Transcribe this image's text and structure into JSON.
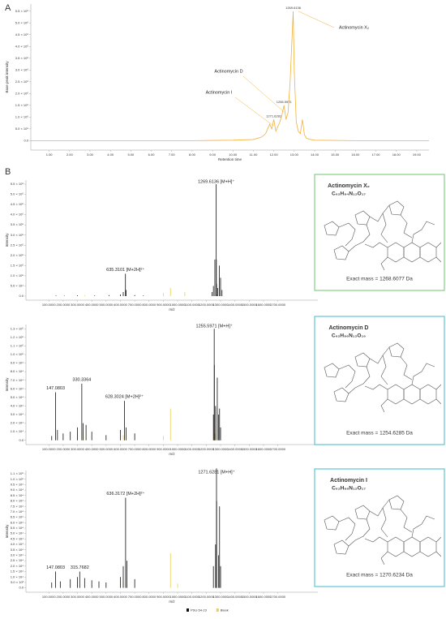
{
  "panel_labels": [
    "A",
    "B"
  ],
  "chart_data": [
    {
      "type": "line",
      "x_label": "Retention time",
      "y_label": "Base peak intensity",
      "series": [
        {
          "color": "#f2b13c",
          "x": [
            0.1,
            2,
            4,
            6,
            8,
            10,
            11,
            11.4,
            11.6,
            11.8,
            11.9,
            12.0,
            12.1,
            12.2,
            12.3,
            12.4,
            12.5,
            12.6,
            12.7,
            12.8,
            12.9,
            12.95,
            13.0,
            13.1,
            13.2,
            13.3,
            13.4,
            13.5,
            13.6,
            13.8,
            14,
            16,
            19.6
          ],
          "values": [
            0,
            0,
            0,
            0,
            0,
            20000,
            50000,
            150000,
            300000,
            700000,
            500000,
            900000,
            400000,
            600000,
            800000,
            1100000,
            1500000,
            900000,
            1200000,
            2500000,
            4500000,
            5500000,
            3000000,
            800000,
            400000,
            300000,
            900000,
            250000,
            100000,
            50000,
            20000,
            0,
            0
          ]
        }
      ],
      "annotations": [
        {
          "text": "1269.6136",
          "callout": "Actinomycin X₂",
          "x": 12.95,
          "y": 5500000
        },
        {
          "text": "1255.5971",
          "callout": "Actinomycin D",
          "x": 12.5,
          "y": 1500000
        },
        {
          "text": "1271.6281",
          "callout": "Actinomycin I",
          "x": 12.0,
          "y": 900000
        }
      ],
      "xlim": [
        0.1,
        19.6
      ],
      "ylim": [
        -400000,
        5800000
      ],
      "xticks": [
        {
          "value": 1,
          "label": "1.00"
        },
        {
          "value": 2,
          "label": "2.00"
        },
        {
          "value": 3,
          "label": "3.00"
        },
        {
          "value": 4,
          "label": "4.00"
        },
        {
          "value": 5,
          "label": "5.00"
        },
        {
          "value": 6,
          "label": "6.00"
        },
        {
          "value": 7,
          "label": "7.00"
        },
        {
          "value": 8,
          "label": "8.00"
        },
        {
          "value": 9,
          "label": "9.00"
        },
        {
          "value": 10,
          "label": "10.00"
        },
        {
          "value": 11,
          "label": "11.00"
        },
        {
          "value": 12,
          "label": "12.00"
        },
        {
          "value": 13,
          "label": "13.00"
        },
        {
          "value": 14,
          "label": "14.00"
        },
        {
          "value": 15,
          "label": "15.00"
        },
        {
          "value": 16,
          "label": "16.00"
        },
        {
          "value": 17,
          "label": "17.00"
        },
        {
          "value": 18,
          "label": "18.00"
        },
        {
          "value": 19,
          "label": "19.00"
        }
      ],
      "yticks": [
        {
          "value": 0,
          "label": "0.0"
        },
        {
          "value": 500000,
          "label": "5.0 × 10⁵"
        },
        {
          "value": 1000000,
          "label": "1.0 × 10⁶"
        },
        {
          "value": 1500000,
          "label": "1.5 × 10⁶"
        },
        {
          "value": 2000000,
          "label": "2.0 × 10⁶"
        },
        {
          "value": 2500000,
          "label": "2.5 × 10⁶"
        },
        {
          "value": 3000000,
          "label": "3.0 × 10⁶"
        },
        {
          "value": 3500000,
          "label": "3.5 × 10⁶"
        },
        {
          "value": 4000000,
          "label": "4.0 × 10⁶"
        },
        {
          "value": 4500000,
          "label": "4.5 × 10⁶"
        },
        {
          "value": 5000000,
          "label": "5.0 × 10⁶"
        },
        {
          "value": 5500000,
          "label": "5.5 × 10⁶"
        }
      ]
    },
    {
      "type": "stem",
      "x_label": "m/z",
      "y_label": "Intensity",
      "series": [
        {
          "color": "#111111",
          "x": [
            150,
            210,
            300,
            420,
            520,
            600,
            620,
            635.3101,
            640,
            700,
            760,
            1240,
            1250,
            1260,
            1269.6136,
            1270.6,
            1272,
            1280,
            1291,
            1300,
            1310
          ],
          "values": [
            3000,
            2000,
            4000,
            3000,
            5000,
            8000,
            20000,
            110000,
            30000,
            5000,
            3000,
            20000,
            50000,
            180000,
            550000,
            180000,
            60000,
            40000,
            150000,
            90000,
            30000
          ]
        },
        {
          "color": "#e8d24a",
          "x": [
            350,
            620,
            900,
            950,
            1050,
            1275
          ],
          "values": [
            5000,
            8000,
            15000,
            40000,
            20000,
            10000
          ]
        }
      ],
      "annotations": [
        {
          "text": "1269.6136 [M+H]⁺",
          "x": 1269.6136
        },
        {
          "text": "635.3101 [M+2H]²⁺",
          "x": 635.3101
        }
      ],
      "structure": {
        "name": "Actinomycin X₂",
        "formula": "C₆₂H₈₄N₁₂O₁₇",
        "exact_mass_text": "Exact mass = 1268.6077 Da",
        "border_color": "#86cf86"
      },
      "xlim": [
        -60,
        1980
      ],
      "ylim": [
        -20000,
        570000
      ],
      "xticks": [
        {
          "value": 100,
          "label": "100.0000"
        },
        {
          "value": 200,
          "label": "200.0000"
        },
        {
          "value": 300,
          "label": "300.0000"
        },
        {
          "value": 400,
          "label": "400.0000"
        },
        {
          "value": 500,
          "label": "500.0000"
        },
        {
          "value": 600,
          "label": "600.0000"
        },
        {
          "value": 700,
          "label": "700.0000"
        },
        {
          "value": 800,
          "label": "800.0000"
        },
        {
          "value": 900,
          "label": "900.0000"
        },
        {
          "value": 1000,
          "label": "1000.0000"
        },
        {
          "value": 1100,
          "label": "1100.0000"
        },
        {
          "value": 1200,
          "label": "1200.0000"
        },
        {
          "value": 1300,
          "label": "1300.0000"
        },
        {
          "value": 1400,
          "label": "1400.0000"
        },
        {
          "value": 1500,
          "label": "1500.0000"
        },
        {
          "value": 1600,
          "label": "1600.0000"
        },
        {
          "value": 1700,
          "label": "1700.0000"
        }
      ],
      "yticks": [
        {
          "value": 0,
          "label": "0.0"
        },
        {
          "value": 50000,
          "label": "5.0 × 10⁴"
        },
        {
          "value": 100000,
          "label": "1.0 × 10⁵"
        },
        {
          "value": 150000,
          "label": "1.5 × 10⁵"
        },
        {
          "value": 200000,
          "label": "2.0 × 10⁵"
        },
        {
          "value": 250000,
          "label": "2.5 × 10⁵"
        },
        {
          "value": 300000,
          "label": "3.0 × 10⁵"
        },
        {
          "value": 350000,
          "label": "3.5 × 10⁵"
        },
        {
          "value": 400000,
          "label": "4.0 × 10⁵"
        },
        {
          "value": 450000,
          "label": "4.5 × 10⁵"
        },
        {
          "value": 500000,
          "label": "5.0 × 10⁵"
        },
        {
          "value": 550000,
          "label": "5.5 × 10⁵"
        }
      ]
    },
    {
      "type": "stem",
      "x_label": "m/z",
      "y_label": "Intensity",
      "series": [
        {
          "color": "#111111",
          "x": [
            120,
            147.0803,
            160,
            200,
            250,
            300,
            330.3364,
            340,
            360,
            400,
            500,
            600,
            628.3024,
            640,
            700,
            1250,
            1255.5971,
            1256.6,
            1265,
            1277,
            1285,
            1293,
            1300
          ],
          "values": [
            5000,
            56000,
            12000,
            8000,
            10000,
            15000,
            66000,
            20000,
            18000,
            10000,
            6000,
            12000,
            46000,
            15000,
            8000,
            30000,
            130000,
            88000,
            40000,
            73000,
            30000,
            37000,
            15000
          ]
        },
        {
          "color": "#e8d24a",
          "x": [
            300,
            340,
            620,
            900,
            950,
            1260
          ],
          "values": [
            8000,
            10000,
            6000,
            5000,
            37000,
            8000
          ]
        }
      ],
      "annotations": [
        {
          "text": "1255.5971 [M+H]⁺",
          "x": 1255.5971
        },
        {
          "text": "147.0803",
          "x": 147.0803
        },
        {
          "text": "330.3364",
          "x": 330.3364
        },
        {
          "text": "628.3024 [M+2H]²⁺",
          "x": 628.3024
        }
      ],
      "structure": {
        "name": "Actinomycin D",
        "formula": "C₆₂H₈₆N₁₂O₁₆",
        "exact_mass_text": "Exact mass = 1254.6285 Da",
        "border_color": "#5fc6d6"
      },
      "xlim": [
        -60,
        1980
      ],
      "ylim": [
        -5000,
        135000
      ],
      "xticks": [
        {
          "value": 100,
          "label": "100.0000"
        },
        {
          "value": 200,
          "label": "200.0000"
        },
        {
          "value": 300,
          "label": "300.0000"
        },
        {
          "value": 400,
          "label": "400.0000"
        },
        {
          "value": 500,
          "label": "500.0000"
        },
        {
          "value": 600,
          "label": "600.0000"
        },
        {
          "value": 700,
          "label": "700.0000"
        },
        {
          "value": 800,
          "label": "800.0000"
        },
        {
          "value": 900,
          "label": "900.0000"
        },
        {
          "value": 1000,
          "label": "1000.0000"
        },
        {
          "value": 1100,
          "label": "1100.0000"
        },
        {
          "value": 1200,
          "label": "1200.0000"
        },
        {
          "value": 1300,
          "label": "1300.0000"
        },
        {
          "value": 1400,
          "label": "1400.0000"
        },
        {
          "value": 1500,
          "label": "1500.0000"
        },
        {
          "value": 1600,
          "label": "1600.0000"
        },
        {
          "value": 1700,
          "label": "1700.0000"
        }
      ],
      "yticks": [
        {
          "value": 0,
          "label": "0.0"
        },
        {
          "value": 10000,
          "label": "1.0 × 10⁴"
        },
        {
          "value": 20000,
          "label": "2.0 × 10⁴"
        },
        {
          "value": 30000,
          "label": "3.0 × 10⁴"
        },
        {
          "value": 40000,
          "label": "4.0 × 10⁴"
        },
        {
          "value": 50000,
          "label": "5.0 × 10⁴"
        },
        {
          "value": 60000,
          "label": "6.0 × 10⁴"
        },
        {
          "value": 70000,
          "label": "7.0 × 10⁴"
        },
        {
          "value": 80000,
          "label": "8.0 × 10⁴"
        },
        {
          "value": 90000,
          "label": "9.0 × 10⁴"
        },
        {
          "value": 100000,
          "label": "1.0 × 10⁵"
        },
        {
          "value": 110000,
          "label": "1.1 × 10⁵"
        },
        {
          "value": 120000,
          "label": "1.2 × 10⁵"
        },
        {
          "value": 130000,
          "label": "1.3 × 10⁵"
        }
      ]
    },
    {
      "type": "stem",
      "x_label": "m/z",
      "y_label": "Intensity",
      "legend": "bottom",
      "series": [
        {
          "name": "PSU-54-23",
          "color": "#111111",
          "x": [
            120,
            147.0803,
            180,
            250,
            300,
            315.7682,
            350,
            400,
            450,
            500,
            600,
            620,
            636.3172,
            645,
            700,
            1250,
            1265,
            1271.6281,
            1272.6,
            1285,
            1293,
            1300
          ],
          "values": [
            5000,
            15000,
            6000,
            8000,
            10000,
            15000,
            9000,
            7000,
            6000,
            5000,
            10000,
            20000,
            83000,
            25000,
            8000,
            20000,
            40000,
            110000,
            80000,
            30000,
            75000,
            20000
          ]
        },
        {
          "name": "Blank",
          "color": "#e8d24a",
          "x": [
            300,
            620,
            950,
            1000
          ],
          "values": [
            6000,
            8000,
            32000,
            4000
          ]
        }
      ],
      "annotations": [
        {
          "text": "1271.6281 [M+H]⁺",
          "x": 1271.6281
        },
        {
          "text": "636.3172 [M+2H]²⁺",
          "x": 636.3172
        },
        {
          "text": "147.0803",
          "x": 147.0803
        },
        {
          "text": "315.7682",
          "x": 315.7682
        }
      ],
      "structure": {
        "name": "Actinomycin I",
        "formula": "C₆₂H₈₆N₁₂O₁₇",
        "exact_mass_text": "Exact mass = 1270.6234 Da",
        "border_color": "#5fc6d6"
      },
      "xlim": [
        -60,
        1980
      ],
      "ylim": [
        -4000,
        108000
      ],
      "xticks": [
        {
          "value": 100,
          "label": "100.0000"
        },
        {
          "value": 200,
          "label": "200.0000"
        },
        {
          "value": 300,
          "label": "300.0000"
        },
        {
          "value": 400,
          "label": "400.0000"
        },
        {
          "value": 500,
          "label": "500.0000"
        },
        {
          "value": 600,
          "label": "600.0000"
        },
        {
          "value": 700,
          "label": "700.0000"
        },
        {
          "value": 800,
          "label": "800.0000"
        },
        {
          "value": 900,
          "label": "900.0000"
        },
        {
          "value": 1000,
          "label": "1000.0000"
        },
        {
          "value": 1100,
          "label": "1100.0000"
        },
        {
          "value": 1200,
          "label": "1200.0000"
        },
        {
          "value": 1300,
          "label": "1300.0000"
        },
        {
          "value": 1400,
          "label": "1400.0000"
        },
        {
          "value": 1500,
          "label": "1500.0000"
        },
        {
          "value": 1600,
          "label": "1600.0000"
        },
        {
          "value": 1700,
          "label": "1700.0000"
        }
      ],
      "yticks": [
        {
          "value": 0,
          "label": "0.0"
        },
        {
          "value": 5000,
          "label": "5.0 × 10³"
        },
        {
          "value": 10000,
          "label": "1.0 × 10⁴"
        },
        {
          "value": 15000,
          "label": "1.5 × 10⁴"
        },
        {
          "value": 20000,
          "label": "2.0 × 10⁴"
        },
        {
          "value": 25000,
          "label": "2.5 × 10⁴"
        },
        {
          "value": 30000,
          "label": "3.0 × 10⁴"
        },
        {
          "value": 35000,
          "label": "3.5 × 10⁴"
        },
        {
          "value": 40000,
          "label": "4.0 × 10⁴"
        },
        {
          "value": 45000,
          "label": "4.5 × 10⁴"
        },
        {
          "value": 50000,
          "label": "5.0 × 10⁴"
        },
        {
          "value": 55000,
          "label": "5.5 × 10⁴"
        },
        {
          "value": 60000,
          "label": "6.0 × 10⁴"
        },
        {
          "value": 65000,
          "label": "6.5 × 10⁴"
        },
        {
          "value": 70000,
          "label": "7.0 × 10⁴"
        },
        {
          "value": 75000,
          "label": "7.5 × 10⁴"
        },
        {
          "value": 80000,
          "label": "8.0 × 10⁴"
        },
        {
          "value": 85000,
          "label": "8.5 × 10⁴"
        },
        {
          "value": 90000,
          "label": "9.0 × 10⁴"
        },
        {
          "value": 95000,
          "label": "9.5 × 10⁴"
        },
        {
          "value": 100000,
          "label": "1.0 × 10⁵"
        },
        {
          "value": 105000,
          "label": "1.1 × 10⁵"
        }
      ]
    }
  ]
}
